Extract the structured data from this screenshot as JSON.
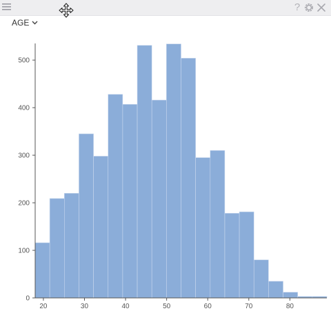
{
  "toolbar": {
    "menu_icon": "hamburger-menu-icon",
    "move_icon": "move-arrows-icon",
    "help_label": "?",
    "settings_icon": "gear-icon",
    "close_icon": "close-icon"
  },
  "field_selector": {
    "value": "AGE",
    "icon": "chevron-down-icon"
  },
  "chart_data": {
    "type": "bar",
    "title": "",
    "xlabel": "",
    "ylabel": "",
    "bar_color": "#8badd9",
    "bar_edge_color": "#c9d8ee",
    "xlim": [
      18,
      89
    ],
    "ylim": [
      0,
      535
    ],
    "x_ticks": [
      20,
      30,
      40,
      50,
      60,
      70,
      80
    ],
    "y_ticks": [
      0,
      100,
      200,
      300,
      400,
      500
    ],
    "bin_width": 3.55,
    "bins": [
      {
        "start": 18.0,
        "end": 21.55,
        "value": 116
      },
      {
        "start": 21.55,
        "end": 25.1,
        "value": 209
      },
      {
        "start": 25.1,
        "end": 28.65,
        "value": 220
      },
      {
        "start": 28.65,
        "end": 32.2,
        "value": 345
      },
      {
        "start": 32.2,
        "end": 35.75,
        "value": 298
      },
      {
        "start": 35.75,
        "end": 39.3,
        "value": 428
      },
      {
        "start": 39.3,
        "end": 42.85,
        "value": 407
      },
      {
        "start": 42.85,
        "end": 46.4,
        "value": 531
      },
      {
        "start": 46.4,
        "end": 49.95,
        "value": 416
      },
      {
        "start": 49.95,
        "end": 53.5,
        "value": 534
      },
      {
        "start": 53.5,
        "end": 57.05,
        "value": 504
      },
      {
        "start": 57.05,
        "end": 60.6,
        "value": 295
      },
      {
        "start": 60.6,
        "end": 64.15,
        "value": 310
      },
      {
        "start": 64.15,
        "end": 67.7,
        "value": 178
      },
      {
        "start": 67.7,
        "end": 71.25,
        "value": 181
      },
      {
        "start": 71.25,
        "end": 74.8,
        "value": 80
      },
      {
        "start": 74.8,
        "end": 78.35,
        "value": 35
      },
      {
        "start": 78.35,
        "end": 81.9,
        "value": 12
      },
      {
        "start": 81.9,
        "end": 85.45,
        "value": 3
      },
      {
        "start": 85.45,
        "end": 89.0,
        "value": 3
      }
    ]
  }
}
